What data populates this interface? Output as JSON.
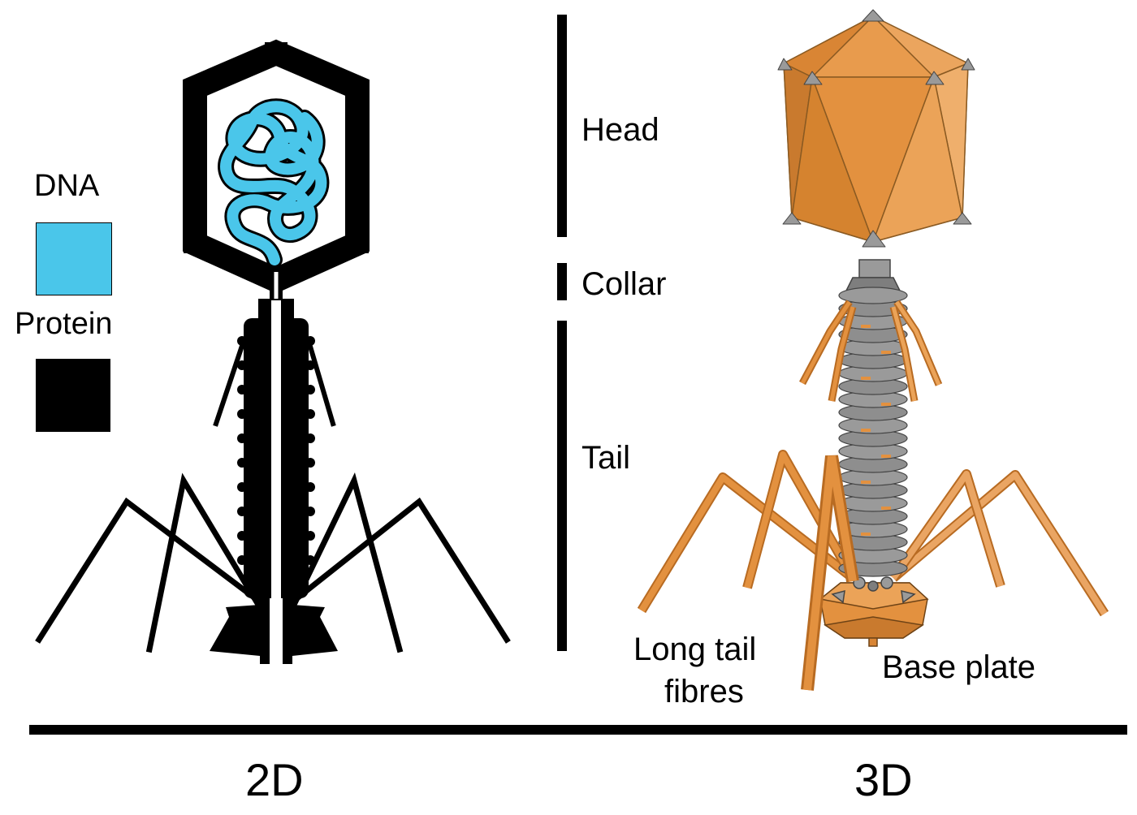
{
  "legend": {
    "dna_label": "DNA",
    "protein_label": "Protein",
    "dna_color": "#4ac6ea",
    "protein_color": "#000000"
  },
  "parts": {
    "head": "Head",
    "collar": "Collar",
    "tail": "Tail"
  },
  "labels_3d": {
    "long_tail_fibres_line1": "Long tail",
    "long_tail_fibres_line2": "fibres",
    "base_plate": "Base plate"
  },
  "views": {
    "left": "2D",
    "right": "3D"
  },
  "colors": {
    "orange": "#e3913f",
    "orange_dark": "#b86b22",
    "grey": "#8e8e8e",
    "grey_dark": "#555555"
  }
}
